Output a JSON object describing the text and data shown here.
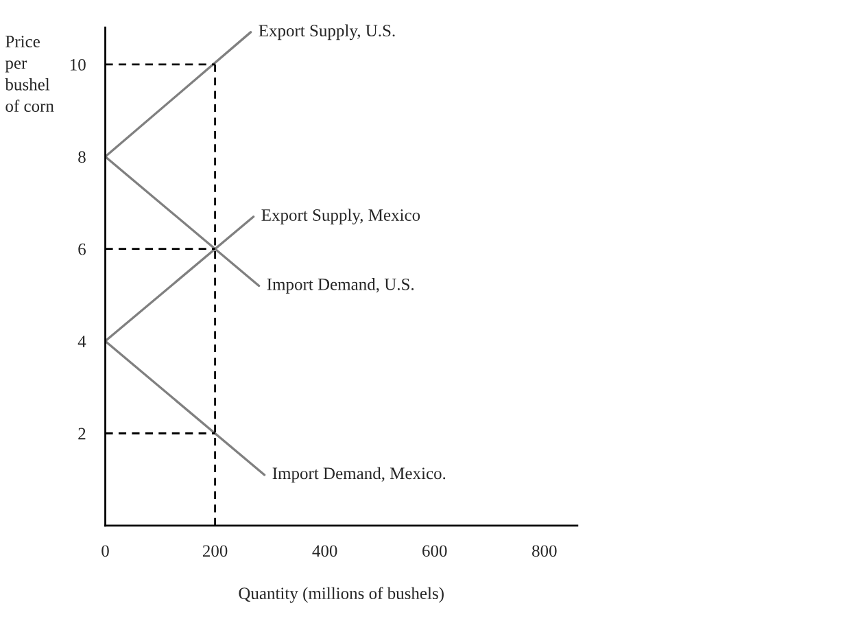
{
  "chart_data": {
    "type": "line",
    "xlabel": "Quantity (millions of bushels)",
    "ylabel": "Price\nper\nbushel\nof corn",
    "xlim": [
      0,
      860
    ],
    "ylim": [
      0,
      10.8
    ],
    "xticks": [
      0,
      200,
      400,
      600,
      800
    ],
    "yticks": [
      2,
      4,
      6,
      8,
      10
    ],
    "grid": false,
    "legend": false,
    "marker": "none",
    "series": [
      {
        "name": "Export Supply, U.S.",
        "color": "#808080",
        "x": [
          0,
          265
        ],
        "values": [
          8,
          10.7
        ]
      },
      {
        "name": "Export Supply, Mexico",
        "color": "#808080",
        "x": [
          0,
          270
        ],
        "values": [
          4,
          6.7
        ]
      },
      {
        "name": "Import Demand, U.S.",
        "color": "#808080",
        "x": [
          0,
          280
        ],
        "values": [
          8,
          5.2
        ]
      },
      {
        "name": "Import Demand, Mexico.",
        "color": "#808080",
        "x": [
          0,
          290
        ],
        "values": [
          4,
          1.1
        ]
      },
      {
        "color": "#000000",
        "line_style": "dashed",
        "x": [
          0,
          200
        ],
        "values": [
          10,
          10
        ]
      },
      {
        "color": "#000000",
        "line_style": "dashed",
        "x": [
          0,
          200
        ],
        "values": [
          6,
          6
        ]
      },
      {
        "color": "#000000",
        "line_style": "dashed",
        "x": [
          0,
          200
        ],
        "values": [
          2,
          2
        ]
      },
      {
        "color": "#000000",
        "line_style": "dashed",
        "x": [
          200,
          200
        ],
        "values": [
          0,
          10
        ]
      }
    ]
  }
}
